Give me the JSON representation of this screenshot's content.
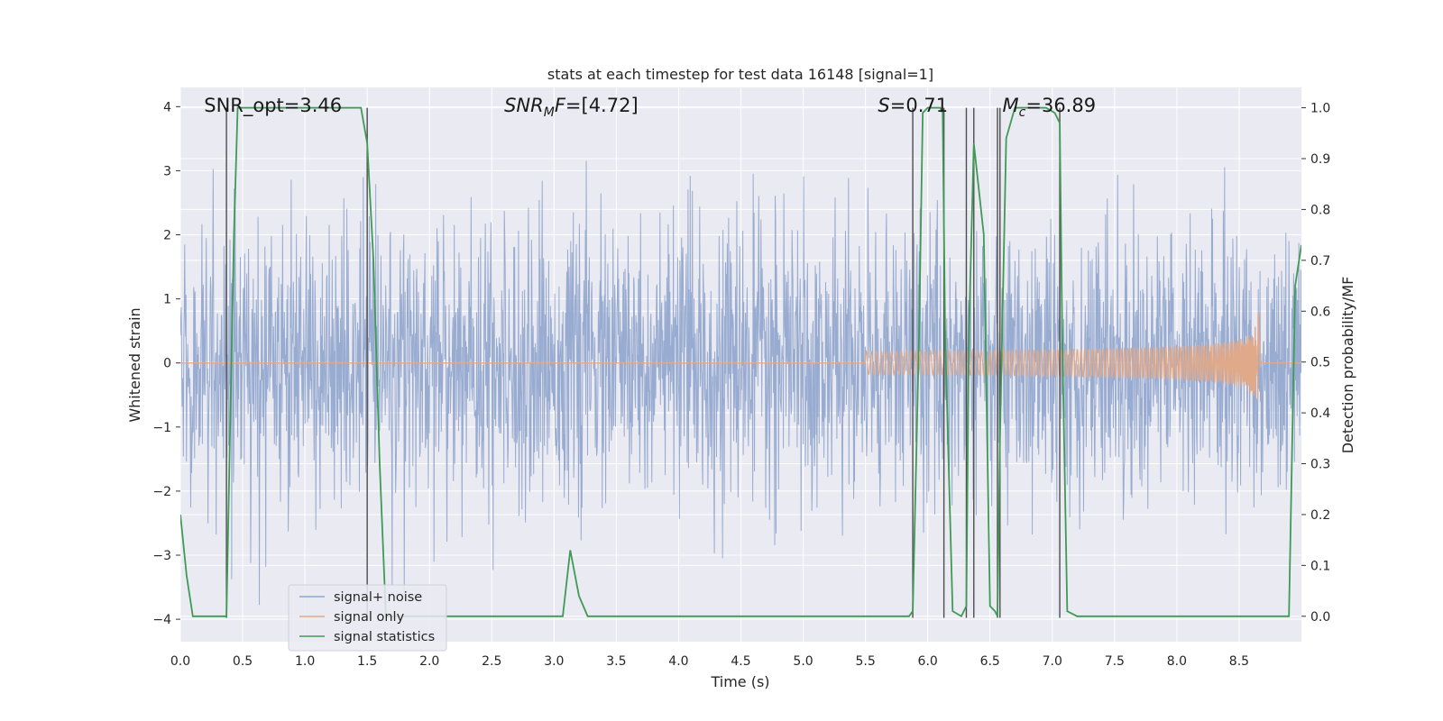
{
  "chart_data": {
    "type": "line",
    "title": "stats at each timestep for test data 16148 [signal=1]",
    "xlabel": "Time (s)",
    "ylabel_left": "Whitened strain",
    "ylabel_right": "Detection probability/MF",
    "xlim": [
      0.0,
      9.0
    ],
    "ylim_left": [
      -4.35,
      4.3
    ],
    "ylim_right": [
      -0.05,
      1.04
    ],
    "x_ticks": [
      "0.0",
      "0.5",
      "1.0",
      "1.5",
      "2.0",
      "2.5",
      "3.0",
      "3.5",
      "4.0",
      "4.5",
      "5.0",
      "5.5",
      "6.0",
      "6.5",
      "7.0",
      "7.5",
      "8.0",
      "8.5"
    ],
    "y_ticks_left": [
      "−4",
      "−3",
      "−2",
      "−1",
      "0",
      "1",
      "2",
      "3",
      "4"
    ],
    "y_ticks_right": [
      "0.0",
      "0.1",
      "0.2",
      "0.3",
      "0.4",
      "0.5",
      "0.6",
      "0.7",
      "0.8",
      "0.9",
      "1.0"
    ],
    "grid": true,
    "legend_position": "lower-left",
    "colors": {
      "signal_noise": "#8fa4cc",
      "signal_only": "#e0a98a",
      "signal_statistics": "#3f9a55",
      "vlines": "#4d4d4d",
      "plot_bg": "#eaeaf2",
      "grid": "#ffffff"
    },
    "annotations": [
      {
        "text": "SNR_opt=3.46",
        "x": 0.19
      },
      {
        "text": "SNR_MF=[4.72]",
        "x": 2.6
      },
      {
        "text": "S=0.71",
        "x": 5.6
      },
      {
        "text": "M_c=36.89",
        "x": 6.6
      }
    ],
    "detection_boundaries_x": [
      0.37,
      1.5,
      5.88,
      6.13,
      6.31,
      6.37,
      6.56,
      6.58,
      7.06
    ],
    "series": [
      {
        "name": "signal+ noise",
        "axis": "left",
        "description_type": "gaussian_noise_band",
        "typical_range": [
          -2.3,
          2.3
        ],
        "peak_range": [
          -4.0,
          3.9
        ]
      },
      {
        "name": "signal only",
        "axis": "left",
        "description_type": "chirp",
        "merger_time": 8.66,
        "peak_amplitude": 0.95
      },
      {
        "name": "signal statistics",
        "axis": "right",
        "x": [
          0.0,
          0.05,
          0.1,
          0.2,
          0.3,
          0.37,
          0.4,
          0.43,
          0.46,
          0.5,
          1.0,
          1.45,
          1.5,
          1.55,
          1.6,
          1.65,
          2.0,
          2.4,
          2.5,
          3.0,
          3.07,
          3.13,
          3.2,
          3.27,
          3.5,
          4.0,
          5.0,
          5.5,
          5.85,
          5.88,
          5.93,
          5.96,
          6.0,
          6.1,
          6.12,
          6.14,
          6.2,
          6.27,
          6.31,
          6.33,
          6.37,
          6.45,
          6.5,
          6.54,
          6.56,
          6.58,
          6.63,
          6.7,
          6.75,
          6.95,
          7.02,
          7.06,
          7.08,
          7.12,
          7.2,
          7.5,
          8.0,
          8.5,
          8.9,
          8.95,
          9.0
        ],
        "y": [
          0.2,
          0.08,
          0.0,
          0.0,
          0.0,
          0.0,
          0.38,
          0.75,
          1.0,
          1.0,
          1.0,
          1.0,
          0.93,
          0.7,
          0.3,
          0.0,
          0.0,
          0.0,
          0.0,
          0.0,
          0.0,
          0.13,
          0.04,
          0.0,
          0.0,
          0.0,
          0.0,
          0.0,
          0.0,
          0.01,
          0.55,
          0.99,
          1.0,
          1.0,
          0.99,
          0.55,
          0.01,
          0.0,
          0.02,
          0.55,
          0.93,
          0.75,
          0.02,
          0.01,
          0.0,
          0.35,
          0.94,
          1.0,
          1.0,
          1.0,
          0.99,
          0.97,
          0.55,
          0.01,
          0.0,
          0.0,
          0.0,
          0.0,
          0.0,
          0.65,
          0.73
        ]
      }
    ]
  }
}
